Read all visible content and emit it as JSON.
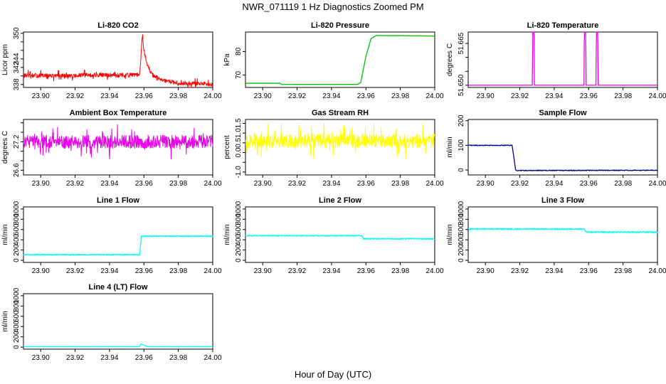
{
  "figure": {
    "title": "NWR_071119  1 Hz Diagnostics Zoomed PM",
    "xlabel": "Hour of Day (UTC)"
  },
  "chart_data": [
    {
      "type": "line",
      "title": "Li-820 CO2",
      "ylabel": "Licor ppm",
      "color": "#ff0000",
      "xlim": [
        23.89,
        24.0
      ],
      "ylim": [
        337.3,
        350.3
      ],
      "xticks": [
        "23.90",
        "23.92",
        "23.94",
        "23.96",
        "23.98",
        "24.00"
      ],
      "yticks": [
        "338",
        "340",
        "342",
        "344",
        "346",
        "348",
        "350"
      ],
      "yticks_shown": [
        "338",
        "342",
        "344",
        "350"
      ],
      "x": [
        23.89,
        23.92,
        23.925,
        23.9575,
        23.958,
        23.959,
        23.96,
        23.962,
        23.965,
        23.97,
        23.98,
        24.0
      ],
      "y": [
        340.1,
        340.0,
        340.2,
        340.2,
        342.5,
        349.5,
        346.0,
        342.5,
        340.2,
        339.0,
        338.3,
        338.1
      ],
      "noise": 0.5,
      "noise_pattern": "spiky"
    },
    {
      "type": "line",
      "title": "Li-820 Pressure",
      "ylabel": "kPa",
      "color": "#00c000",
      "xlim": [
        23.89,
        24.0
      ],
      "ylim": [
        64.7,
        88.3
      ],
      "xticks": [
        "23.90",
        "23.92",
        "23.94",
        "23.96",
        "23.98",
        "24.00"
      ],
      "yticks": [
        "70",
        "80"
      ],
      "yticks_shown": [
        "70",
        "80"
      ],
      "x": [
        23.89,
        23.91,
        23.911,
        23.955,
        23.957,
        23.96,
        23.963,
        23.966,
        24.0
      ],
      "y": [
        66.5,
        66.5,
        66.0,
        66.0,
        66.8,
        78.0,
        85.5,
        86.8,
        86.6
      ],
      "noise": 0.05,
      "noise_pattern": "smooth"
    },
    {
      "type": "line",
      "title": "Li-820 Temperature",
      "ylabel": "degrees C",
      "color": "#e800e8",
      "xlim": [
        23.89,
        24.0
      ],
      "ylim": [
        51.6492,
        51.6691
      ],
      "xticks": [
        "23.90",
        "23.92",
        "23.94",
        "23.96",
        "23.98",
        "24.00"
      ],
      "yticks": [
        "51.650",
        "51.655",
        "51.660",
        "51.665"
      ],
      "yticks_shown": [
        "51.650",
        "51.665"
      ],
      "x": [
        23.89,
        23.9273,
        23.9275,
        23.9283,
        23.9285,
        23.9573,
        23.9575,
        23.9583,
        23.9585,
        23.9643,
        23.9645,
        23.9653,
        23.9655,
        24.0
      ],
      "y": [
        51.65,
        51.65,
        51.6691,
        51.6691,
        51.65,
        51.65,
        51.6691,
        51.6691,
        51.65,
        51.65,
        51.6691,
        51.6691,
        51.65,
        51.65
      ],
      "noise": 0,
      "noise_pattern": "none"
    },
    {
      "type": "line",
      "title": "Ambient Box Temperature",
      "ylabel": "degrees C",
      "color": "#e800e8",
      "xlim": [
        23.89,
        24.0
      ],
      "ylim": [
        26.5,
        27.67
      ],
      "xticks": [
        "23.90",
        "23.92",
        "23.94",
        "23.96",
        "23.98",
        "24.00"
      ],
      "yticks": [
        "26.6",
        "26.8",
        "27.0",
        "27.2",
        "27.4",
        "27.6"
      ],
      "yticks_shown": [
        "26.6",
        "27.2"
      ],
      "x": [
        23.89,
        24.0
      ],
      "y": [
        27.2,
        27.2
      ],
      "noise": 0.14,
      "noise_pattern": "spiky"
    },
    {
      "type": "line",
      "title": "Gas Stream RH",
      "ylabel": "percent",
      "color": "#ffff00",
      "xlim": [
        23.89,
        24.0
      ],
      "ylim": [
        -1.15,
        1.7
      ],
      "xticks": [
        "23.90",
        "23.92",
        "23.94",
        "23.96",
        "23.98",
        "24.00"
      ],
      "yticks": [
        "-1.0",
        "-0.5",
        "0.0",
        "0.5",
        "1.0",
        "1.5"
      ],
      "yticks_shown": [
        "-1.0",
        "0.0",
        "0.5",
        "1.0",
        "1.5"
      ],
      "x": [
        23.89,
        24.0
      ],
      "y": [
        0.6,
        0.6
      ],
      "noise": 0.35,
      "noise_pattern": "spiky"
    },
    {
      "type": "line",
      "title": "Sample Flow",
      "ylabel": "ml/min",
      "color": "#00008b",
      "xlim": [
        23.89,
        24.0
      ],
      "ylim": [
        -20,
        205
      ],
      "xticks": [
        "23.90",
        "23.92",
        "23.94",
        "23.96",
        "23.98",
        "24.00"
      ],
      "yticks": [
        "0",
        "100",
        "200"
      ],
      "yticks_shown": [
        "0",
        "100",
        "200"
      ],
      "x": [
        23.89,
        23.9155,
        23.9165,
        23.9175,
        23.918,
        24.0
      ],
      "y": [
        100,
        100,
        55,
        2,
        -2,
        -1
      ],
      "noise": 1.5,
      "noise_pattern": "smooth"
    },
    {
      "type": "line",
      "title": "Line 1 Flow",
      "ylabel": "ml/min",
      "color": "#00ffff",
      "xlim": [
        23.89,
        24.0
      ],
      "ylim": [
        -40,
        1040
      ],
      "xticks": [
        "23.90",
        "23.92",
        "23.94",
        "23.96",
        "23.98",
        "24.00"
      ],
      "yticks": [
        "0",
        "200",
        "400",
        "600",
        "800",
        "1000"
      ],
      "yticks_shown": [
        "0",
        "200",
        "400",
        "600",
        "800",
        "1000"
      ],
      "x": [
        23.89,
        23.9575,
        23.9585,
        24.0
      ],
      "y": [
        110,
        110,
        470,
        470
      ],
      "noise": 10,
      "noise_pattern": "smooth"
    },
    {
      "type": "line",
      "title": "Line 2 Flow",
      "ylabel": "ml/min",
      "color": "#00ffff",
      "xlim": [
        23.89,
        24.0
      ],
      "ylim": [
        -40,
        1040
      ],
      "xticks": [
        "23.90",
        "23.92",
        "23.94",
        "23.96",
        "23.98",
        "24.00"
      ],
      "yticks": [
        "0",
        "200",
        "400",
        "600",
        "800",
        "1000"
      ],
      "yticks_shown": [
        "0",
        "200",
        "400",
        "600",
        "800",
        "1000"
      ],
      "x": [
        23.89,
        23.9575,
        23.9585,
        24.0
      ],
      "y": [
        480,
        480,
        420,
        420
      ],
      "noise": 10,
      "noise_pattern": "smooth"
    },
    {
      "type": "line",
      "title": "Line 3 Flow",
      "ylabel": "ml/min",
      "color": "#00ffff",
      "xlim": [
        23.89,
        24.0
      ],
      "ylim": [
        -40,
        1040
      ],
      "xticks": [
        "23.90",
        "23.92",
        "23.94",
        "23.96",
        "23.98",
        "24.00"
      ],
      "yticks": [
        "0",
        "200",
        "400",
        "600",
        "800",
        "1000"
      ],
      "yticks_shown": [
        "0",
        "200",
        "400",
        "600",
        "800",
        "1000"
      ],
      "x": [
        23.89,
        23.9575,
        23.9585,
        24.0
      ],
      "y": [
        610,
        610,
        550,
        550
      ],
      "noise": 12,
      "noise_pattern": "smooth"
    },
    {
      "type": "line",
      "title": "Line 4 (LT) Flow",
      "ylabel": "ml/min",
      "color": "#00ffff",
      "xlim": [
        23.89,
        24.0
      ],
      "ylim": [
        -40,
        1040
      ],
      "xticks": [
        "23.90",
        "23.92",
        "23.94",
        "23.96",
        "23.98",
        "24.00"
      ],
      "yticks": [
        "0",
        "200",
        "400",
        "600",
        "800",
        "1000"
      ],
      "yticks_shown": [
        "0",
        "200",
        "400",
        "600",
        "800",
        "1000"
      ],
      "x": [
        23.89,
        23.9575,
        23.958,
        23.959,
        23.961,
        23.963,
        24.0
      ],
      "y": [
        8,
        8,
        60,
        55,
        20,
        8,
        8
      ],
      "noise": 3,
      "noise_pattern": "smooth"
    }
  ]
}
